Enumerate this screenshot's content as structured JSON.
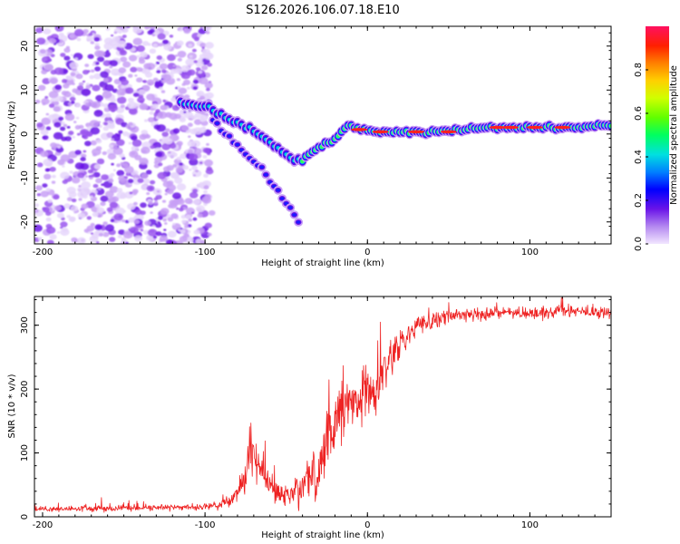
{
  "title": "S126.2026.106.07.18.E10",
  "colors": {
    "snr_line": "#ee2222",
    "axis": "#000000",
    "background": "#ffffff"
  },
  "chart_data": [
    {
      "type": "heatmap",
      "xlabel": "Height of straight line (km)",
      "ylabel": "Frequency (Hz)",
      "xlim": [
        -205,
        150
      ],
      "ylim": [
        -25,
        24.5
      ],
      "xticks": [
        -200,
        -100,
        0,
        100
      ],
      "xtick_labels": [
        "-200",
        "-100",
        "0",
        "100"
      ],
      "yticks": [
        20,
        10,
        0,
        -10,
        -20
      ],
      "ytick_labels": [
        "20",
        "10",
        "0",
        "-10",
        "-20"
      ],
      "noise_region_x": [
        -205,
        -97
      ],
      "descending_branch": {
        "description": "scattered spectral energy from (-115,7) descending to (-40,-6)",
        "points": [
          [
            -115,
            7
          ],
          [
            -98,
            6
          ],
          [
            -88,
            4
          ],
          [
            -78,
            2
          ],
          [
            -70,
            1
          ],
          [
            -60,
            -2
          ],
          [
            -52,
            -4
          ],
          [
            -45,
            -6
          ],
          [
            -40,
            -6
          ]
        ]
      },
      "secondary_branch": {
        "description": "faint line descending from (-95,3) to (-42,-20)",
        "points": [
          [
            -95,
            3
          ],
          [
            -80,
            -3
          ],
          [
            -65,
            -8
          ],
          [
            -55,
            -13
          ],
          [
            -42,
            -20
          ]
        ]
      },
      "recovery_branch": {
        "points": [
          [
            -40,
            -6
          ],
          [
            -30,
            -3
          ],
          [
            -20,
            -1
          ],
          [
            -12,
            2
          ],
          [
            -5,
            1
          ],
          [
            5,
            0.5
          ],
          [
            20,
            0.5
          ],
          [
            40,
            0.5
          ],
          [
            60,
            1
          ],
          [
            80,
            1.5
          ],
          [
            100,
            1.5
          ],
          [
            120,
            1.5
          ],
          [
            150,
            2
          ]
        ]
      },
      "colorbar": {
        "label": "Normalized spectral amplitude",
        "range": [
          0,
          1
        ],
        "ticks": [
          0.0,
          0.2,
          0.4,
          0.6,
          0.8
        ],
        "tick_labels": [
          "0.0",
          "0.2",
          "0.4",
          "0.6",
          "0.8"
        ]
      }
    },
    {
      "type": "line",
      "xlabel": "Height of straight line (km)",
      "ylabel": "SNR (10 * v/v)",
      "xlim": [
        -205,
        150
      ],
      "ylim": [
        0,
        345
      ],
      "xticks": [
        -200,
        -100,
        0,
        100
      ],
      "xtick_labels": [
        "-200",
        "-100",
        "0",
        "100"
      ],
      "yticks": [
        0,
        100,
        200,
        300
      ],
      "ytick_labels": [
        "0",
        "100",
        "200",
        "300"
      ],
      "series": [
        {
          "name": "SNR",
          "x": [
            -205,
            -100,
            -85,
            -75,
            -72,
            -68,
            -60,
            -50,
            -40,
            -32,
            -25,
            -18,
            -10,
            -5,
            0,
            5,
            10,
            20,
            30,
            50,
            80,
            100,
            120,
            150
          ],
          "y": [
            12,
            15,
            22,
            60,
            110,
            85,
            45,
            32,
            45,
            60,
            110,
            160,
            185,
            195,
            200,
            190,
            230,
            270,
            300,
            315,
            320,
            318,
            322,
            320
          ],
          "noise": [
            5,
            5,
            8,
            25,
            40,
            35,
            22,
            20,
            30,
            45,
            55,
            55,
            45,
            45,
            45,
            40,
            35,
            25,
            15,
            12,
            10,
            10,
            10,
            10
          ]
        }
      ]
    }
  ]
}
